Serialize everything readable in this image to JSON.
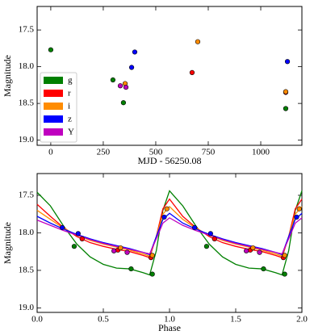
{
  "chart_data": [
    {
      "type": "scatter",
      "xlabel": "MJD - 56250.08",
      "ylabel": "Magnitude",
      "xlim": [
        -65,
        1196
      ],
      "ylim": [
        17.18,
        19.07
      ],
      "y_inverted": true,
      "xticks": [
        0,
        250,
        500,
        750,
        1000
      ],
      "yticks": [
        17.5,
        {
          "value": 18,
          "label": "18.0"
        },
        18.5,
        {
          "value": 19,
          "label": "19.0"
        }
      ],
      "legend": "lower left",
      "series": [
        {
          "name": "g",
          "color": "#008000",
          "x": [
            0,
            296,
            346,
            1119
          ],
          "values": [
            17.77,
            18.18,
            18.49,
            18.57
          ]
        },
        {
          "name": "r",
          "color": "#ff0000",
          "x": [
            673,
            1119
          ],
          "values": [
            18.08,
            18.35
          ]
        },
        {
          "name": "i",
          "color": "#ff8c00",
          "x": [
            700,
            354,
            1119
          ],
          "values": [
            17.66,
            18.23,
            18.34
          ]
        },
        {
          "name": "z",
          "color": "#0000ff",
          "x": [
            400,
            385,
            1127
          ],
          "values": [
            17.8,
            18.01,
            17.93
          ]
        },
        {
          "name": "Y",
          "color": "#bf00bf",
          "x": [
            331,
            358
          ],
          "values": [
            18.26,
            18.28
          ]
        }
      ]
    },
    {
      "type": "scatter",
      "xlabel": "Phase",
      "ylabel": "Magnitude",
      "xlim": [
        0,
        2
      ],
      "ylim": [
        17.21,
        19.06
      ],
      "y_inverted": true,
      "xticks": [
        {
          "value": 0,
          "label": "0.0"
        },
        0.5,
        {
          "value": 1,
          "label": "1.0"
        },
        1.5,
        {
          "value": 2,
          "label": "2.0"
        }
      ],
      "yticks": [
        17.5,
        {
          "value": 18,
          "label": "18.0"
        },
        18.5,
        {
          "value": 19,
          "label": "19.0"
        }
      ],
      "model_x": [
        0,
        0.1,
        0.2,
        0.3,
        0.4,
        0.5,
        0.6,
        0.7,
        0.8,
        0.85,
        0.9,
        0.95,
        1.0,
        1.1,
        1.2,
        1.3,
        1.4,
        1.5,
        1.6,
        1.7,
        1.8,
        1.85,
        1.9,
        1.95,
        2.0
      ],
      "series": [
        {
          "color": "#008000",
          "x": [
            0.28,
            0.71,
            0.87,
            1.28,
            1.71,
            1.87
          ],
          "values": [
            18.18,
            18.48,
            18.55,
            18.18,
            18.48,
            18.55
          ],
          "model_values": [
            17.46,
            17.64,
            17.91,
            18.15,
            18.32,
            18.42,
            18.47,
            18.48,
            18.53,
            18.56,
            18.24,
            17.7,
            17.44,
            17.64,
            17.91,
            18.15,
            18.32,
            18.42,
            18.47,
            18.48,
            18.53,
            18.56,
            18.24,
            17.7,
            17.44
          ]
        },
        {
          "color": "#ff0000",
          "x": [
            0.34,
            0.61,
            0.86,
            1.34,
            1.61,
            1.86
          ],
          "values": [
            18.08,
            18.23,
            18.33,
            18.08,
            18.23,
            18.33
          ],
          "model_values": [
            17.62,
            17.78,
            17.93,
            18.05,
            18.13,
            18.18,
            18.22,
            18.25,
            18.3,
            18.33,
            18.05,
            17.68,
            17.55,
            17.78,
            17.93,
            18.05,
            18.13,
            18.18,
            18.22,
            18.25,
            18.3,
            18.33,
            18.05,
            17.68,
            17.55
          ]
        },
        {
          "color": "#ff8c00",
          "x": [
            0.63,
            0.87,
            0.98,
            1.63,
            1.87,
            1.98
          ],
          "values": [
            18.2,
            18.3,
            17.68,
            18.2,
            18.3,
            17.68
          ],
          "model_values": [
            17.7,
            17.82,
            17.94,
            18.03,
            18.1,
            18.15,
            18.19,
            18.23,
            18.28,
            18.31,
            18.05,
            17.75,
            17.65,
            17.82,
            17.94,
            18.03,
            18.1,
            18.15,
            18.19,
            18.23,
            18.28,
            18.31,
            18.05,
            17.75,
            17.65
          ]
        },
        {
          "color": "#0000ff",
          "x": [
            0.19,
            0.31,
            0.96,
            1.19,
            1.31,
            1.96
          ],
          "values": [
            17.93,
            18.01,
            17.79,
            17.93,
            18.01,
            17.79
          ],
          "model_values": [
            17.78,
            17.87,
            17.95,
            18.02,
            18.08,
            18.13,
            18.17,
            18.21,
            18.26,
            18.29,
            18.05,
            17.82,
            17.74,
            17.87,
            17.95,
            18.02,
            18.08,
            18.13,
            18.17,
            18.21,
            18.26,
            18.29,
            18.05,
            17.82,
            17.74
          ]
        },
        {
          "color": "#bf00bf",
          "x": [
            0.58,
            0.68,
            1.58,
            1.68
          ],
          "values": [
            18.24,
            18.26,
            18.24,
            18.26
          ],
          "model_values": [
            17.83,
            17.9,
            17.97,
            18.03,
            18.09,
            18.14,
            18.18,
            18.22,
            18.26,
            18.28,
            18.08,
            17.87,
            17.8,
            17.9,
            17.97,
            18.03,
            18.09,
            18.14,
            18.18,
            18.22,
            18.26,
            18.28,
            18.08,
            17.87,
            17.8
          ]
        }
      ]
    }
  ]
}
